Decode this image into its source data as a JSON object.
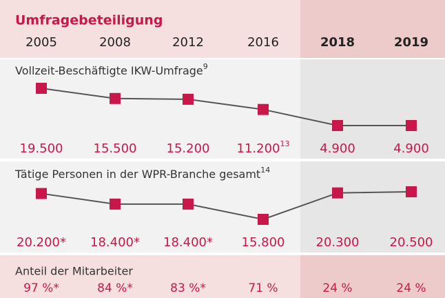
{
  "chart_data": {
    "type": "line",
    "title": "Umfragebeteiligung",
    "categories": [
      "2005",
      "2008",
      "2012",
      "2016",
      "2018",
      "2019"
    ],
    "series": [
      {
        "name": "Vollzeit-Beschäftigte IKW-Umfrage",
        "name_note": "9",
        "color": "#c8174b",
        "values": [
          19500,
          15500,
          15200,
          11200,
          4900,
          4900
        ],
        "value_labels": [
          "19.500",
          "15.500",
          "15.200",
          "11.200",
          "4.900",
          "4.900"
        ],
        "value_notes": [
          null,
          null,
          null,
          "13",
          null,
          null
        ]
      },
      {
        "name": "Tätige Personen in der WPR-Branche gesamt",
        "name_note": "14",
        "color": "#c8174b",
        "values": [
          20200,
          18400,
          18400,
          15800,
          20300,
          20500
        ],
        "value_labels": [
          "20.200*",
          "18.400*",
          "18.400*",
          "15.800",
          "20.300",
          "20.500"
        ]
      }
    ],
    "table_row": {
      "name": "Anteil der Mitarbeiter",
      "values": [
        97,
        84,
        83,
        71,
        24,
        24
      ],
      "value_labels": [
        "97 %*",
        "84 %*",
        "83 %*",
        "71 %",
        "24 %",
        "24 %"
      ]
    }
  }
}
